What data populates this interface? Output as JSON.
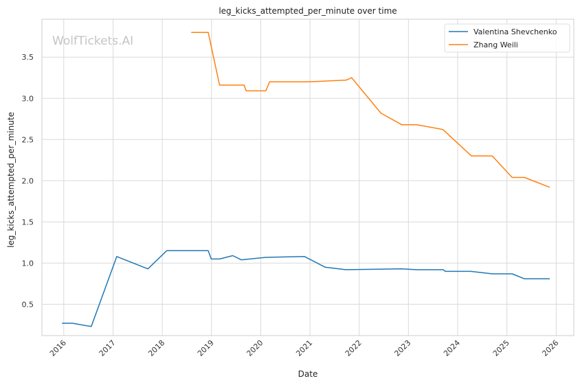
{
  "chart_data": {
    "type": "line",
    "title": "leg_kicks_attempted_per_minute over time",
    "xlabel": "Date",
    "ylabel": "leg_kicks_attempted_per_minute",
    "watermark": "WolfTickets.AI",
    "x_ticks": [
      "2016",
      "2017",
      "2018",
      "2019",
      "2020",
      "2021",
      "2022",
      "2023",
      "2024",
      "2025",
      "2026"
    ],
    "y_ticks": [
      "0.5",
      "1.0",
      "1.5",
      "2.0",
      "2.5",
      "3.0",
      "3.5"
    ],
    "xlim": [
      "2015-07-23",
      "2026-05-12"
    ],
    "ylim": [
      0.12,
      3.96
    ],
    "grid": true,
    "legend_position": "top-right",
    "colors": {
      "Valentina Shevchenko": "#1f77b4",
      "Zhang Weili": "#ff7f0e",
      "grid": "#d9d9d9",
      "spine": "#cccccc"
    },
    "series": [
      {
        "name": "Valentina Shevchenko",
        "points": [
          [
            "2015-12-19",
            0.27
          ],
          [
            "2016-03-05",
            0.27
          ],
          [
            "2016-07-23",
            0.23
          ],
          [
            "2017-01-28",
            1.08
          ],
          [
            "2017-09-16",
            0.93
          ],
          [
            "2018-02-03",
            1.15
          ],
          [
            "2018-05-19",
            1.15
          ],
          [
            "2018-12-08",
            1.15
          ],
          [
            "2018-12-30",
            1.05
          ],
          [
            "2019-03-02",
            1.05
          ],
          [
            "2019-06-08",
            1.09
          ],
          [
            "2019-08-10",
            1.04
          ],
          [
            "2020-02-08",
            1.07
          ],
          [
            "2020-11-21",
            1.08
          ],
          [
            "2021-04-24",
            0.95
          ],
          [
            "2021-09-25",
            0.92
          ],
          [
            "2022-11-12",
            0.93
          ],
          [
            "2023-03-04",
            0.92
          ],
          [
            "2023-09-16",
            0.92
          ],
          [
            "2023-10-01",
            0.9
          ],
          [
            "2024-04-06",
            0.9
          ],
          [
            "2024-09-14",
            0.87
          ],
          [
            "2025-02-08",
            0.87
          ],
          [
            "2025-05-10",
            0.81
          ],
          [
            "2025-11-15",
            0.81
          ]
        ]
      },
      {
        "name": "Zhang Weili",
        "points": [
          [
            "2018-08-04",
            3.8
          ],
          [
            "2018-12-08",
            3.8
          ],
          [
            "2019-03-02",
            3.16
          ],
          [
            "2019-08-31",
            3.16
          ],
          [
            "2019-09-15",
            3.09
          ],
          [
            "2020-02-08",
            3.09
          ],
          [
            "2020-03-07",
            3.2
          ],
          [
            "2020-12-15",
            3.2
          ],
          [
            "2021-09-25",
            3.22
          ],
          [
            "2021-11-06",
            3.25
          ],
          [
            "2022-06-11",
            2.82
          ],
          [
            "2022-11-12",
            2.68
          ],
          [
            "2023-03-04",
            2.68
          ],
          [
            "2023-08-19",
            2.63
          ],
          [
            "2023-09-15",
            2.62
          ],
          [
            "2024-04-13",
            2.3
          ],
          [
            "2024-09-14",
            2.3
          ],
          [
            "2025-02-08",
            2.04
          ],
          [
            "2025-05-10",
            2.04
          ],
          [
            "2025-11-15",
            1.92
          ]
        ]
      }
    ]
  }
}
